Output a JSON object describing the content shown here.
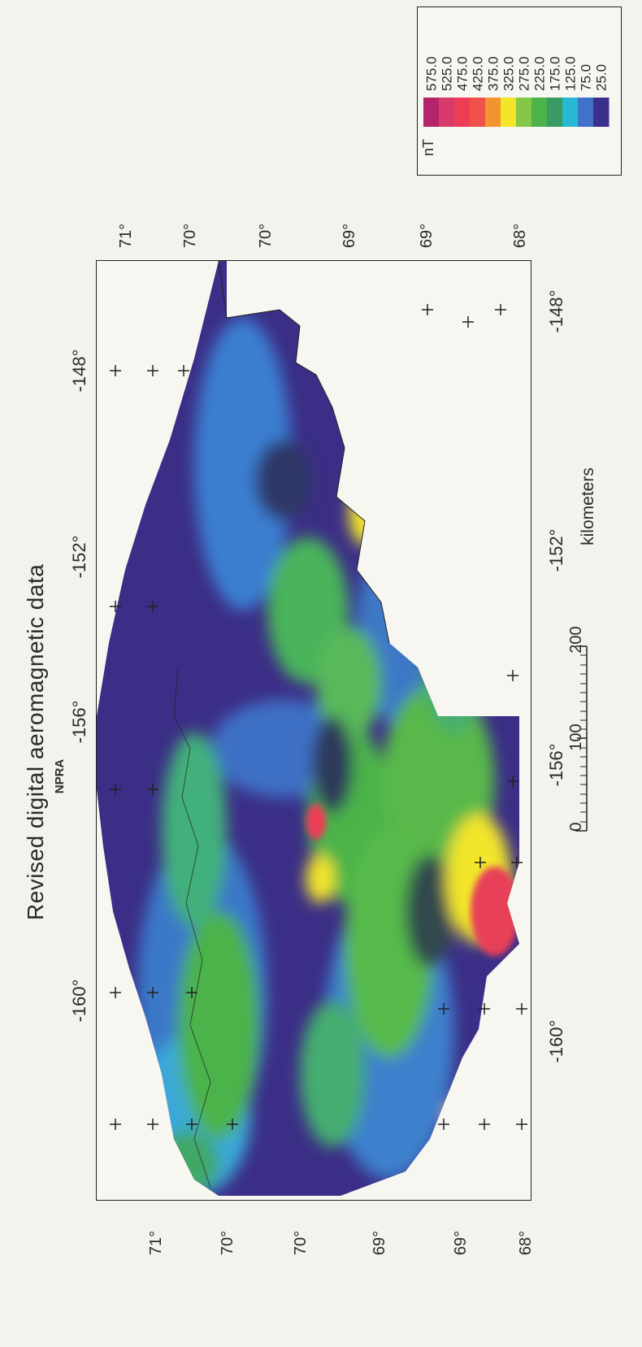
{
  "title": "Revised digital aeromagnetic data",
  "subtitle": "NPRA",
  "longitude_top": [
    "-160°",
    "-156°",
    "-152°",
    "-148°"
  ],
  "longitude_bottom": [
    "-160°",
    "-156°",
    "-152°",
    "-148°"
  ],
  "latitude_left": [
    "71°",
    "70°",
    "70°",
    "69°",
    "69°",
    "68°"
  ],
  "latitude_right": [
    "71°",
    "70°",
    "70°",
    "69°",
    "69°",
    "68°"
  ],
  "legend": {
    "unit": "nT",
    "values": [
      "575.0",
      "525.0",
      "475.0",
      "425.0",
      "375.0",
      "325.0",
      "275.0",
      "225.0",
      "175.0",
      "125.0",
      "75.0",
      "25.0"
    ],
    "colors": [
      "#b3246a",
      "#d83a6c",
      "#ec3c56",
      "#f0504a",
      "#f4942e",
      "#f2e52a",
      "#86c845",
      "#4cb34a",
      "#3a9c62",
      "#27b8d4",
      "#3f72c8",
      "#3a2f8a"
    ]
  },
  "scale_bar": {
    "ticks": [
      "0",
      "100",
      "200"
    ],
    "unit": "kilometers"
  },
  "colors": {
    "background": "#f4f2ec",
    "frame": "#222222",
    "low_field": "#3b2e86",
    "mid_field": "#4cb34a",
    "high_field": "#e84058"
  }
}
